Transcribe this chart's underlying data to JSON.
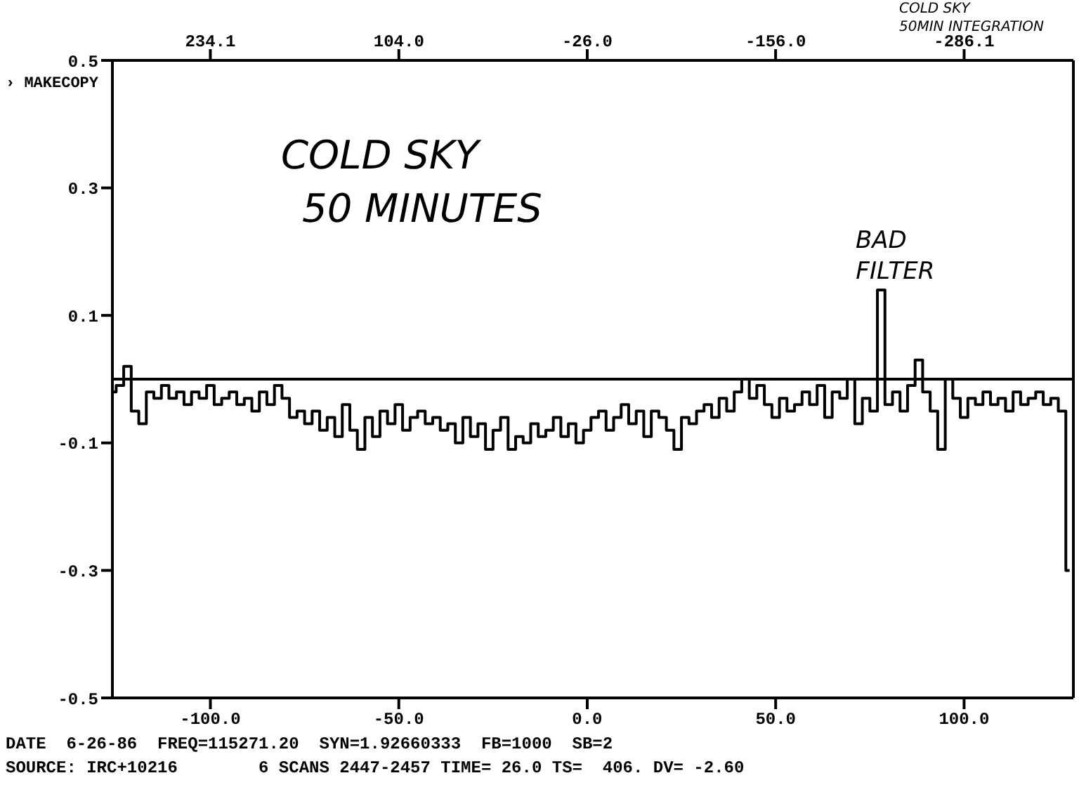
{
  "chart_data": {
    "type": "step",
    "x": [
      -126,
      -124,
      -122,
      -120,
      -118,
      -116,
      -114,
      -112,
      -110,
      -108,
      -106,
      -104,
      -102,
      -100,
      -98,
      -96,
      -94,
      -92,
      -90,
      -88,
      -86,
      -84,
      -82,
      -80,
      -78,
      -76,
      -74,
      -72,
      -70,
      -68,
      -66,
      -64,
      -62,
      -60,
      -58,
      -56,
      -54,
      -52,
      -50,
      -48,
      -46,
      -44,
      -42,
      -40,
      -38,
      -36,
      -34,
      -32,
      -30,
      -28,
      -26,
      -24,
      -22,
      -20,
      -18,
      -16,
      -14,
      -12,
      -10,
      -8,
      -6,
      -4,
      -2,
      0,
      2,
      4,
      6,
      8,
      10,
      12,
      14,
      16,
      18,
      20,
      22,
      24,
      26,
      28,
      30,
      32,
      34,
      36,
      38,
      40,
      42,
      44,
      46,
      48,
      50,
      52,
      54,
      56,
      58,
      60,
      62,
      64,
      66,
      68,
      70,
      72,
      74,
      76,
      78,
      80,
      82,
      84,
      86,
      88,
      90,
      92,
      94,
      96,
      98,
      100,
      102,
      104,
      106,
      108,
      110,
      112,
      114,
      116,
      118,
      120,
      122,
      124,
      126,
      128
    ],
    "series": [
      {
        "color": "#000000",
        "values": [
          -0.02,
          -0.01,
          0.02,
          -0.05,
          -0.07,
          -0.02,
          -0.03,
          -0.01,
          -0.03,
          -0.02,
          -0.04,
          -0.02,
          -0.03,
          -0.01,
          -0.04,
          -0.03,
          -0.02,
          -0.04,
          -0.03,
          -0.05,
          -0.02,
          -0.04,
          -0.01,
          -0.03,
          -0.06,
          -0.05,
          -0.07,
          -0.05,
          -0.08,
          -0.06,
          -0.09,
          -0.04,
          -0.08,
          -0.11,
          -0.06,
          -0.09,
          -0.05,
          -0.07,
          -0.04,
          -0.08,
          -0.06,
          -0.05,
          -0.07,
          -0.06,
          -0.08,
          -0.07,
          -0.1,
          -0.06,
          -0.09,
          -0.07,
          -0.11,
          -0.08,
          -0.06,
          -0.11,
          -0.09,
          -0.1,
          -0.07,
          -0.09,
          -0.08,
          -0.06,
          -0.09,
          -0.07,
          -0.1,
          -0.08,
          -0.06,
          -0.05,
          -0.08,
          -0.06,
          -0.04,
          -0.07,
          -0.05,
          -0.09,
          -0.05,
          -0.06,
          -0.08,
          -0.11,
          -0.06,
          -0.07,
          -0.05,
          -0.04,
          -0.06,
          -0.03,
          -0.05,
          -0.02,
          0.0,
          -0.03,
          -0.01,
          -0.04,
          -0.06,
          -0.03,
          -0.05,
          -0.04,
          -0.02,
          -0.04,
          -0.01,
          -0.06,
          -0.02,
          -0.03,
          0.0,
          -0.07,
          -0.03,
          -0.05,
          0.14,
          -0.04,
          -0.02,
          -0.05,
          -0.01,
          0.03,
          -0.02,
          -0.05,
          -0.11,
          0.0,
          -0.03,
          -0.06,
          -0.03,
          -0.04,
          -0.02,
          -0.04,
          -0.03,
          -0.05,
          -0.02,
          -0.04,
          -0.03,
          -0.02,
          -0.04,
          -0.03,
          -0.05,
          -0.3
        ]
      }
    ],
    "xlim": [
      -126,
      129
    ],
    "xticks": [
      {
        "value": -100,
        "label": "-100.0"
      },
      {
        "value": -50,
        "label": "-50.0"
      },
      {
        "value": 0,
        "label": "0.0"
      },
      {
        "value": 50,
        "label": "50.0"
      },
      {
        "value": 100,
        "label": "100.0"
      }
    ],
    "x2lim": [
      301.7,
      -361.5
    ],
    "x2ticks": [
      {
        "value": 234.1,
        "label": "234.1"
      },
      {
        "value": 104,
        "label": "104.0"
      },
      {
        "value": -26,
        "label": "-26.0"
      },
      {
        "value": -156,
        "label": "-156.0"
      },
      {
        "value": -286.1,
        "label": "-286.1"
      }
    ],
    "ylim": [
      -0.5,
      0.5
    ],
    "yticks": [
      0.5,
      0.3,
      0.1,
      -0.1,
      -0.3,
      -0.5
    ],
    "ref_lines": [
      {
        "axis": "y",
        "value": 0,
        "color": "#000000"
      }
    ],
    "grid": false,
    "legend": false,
    "annotations": [
      "› MAKECOPY",
      "COLD SKY",
      "50 MINUTES",
      "COLD SKY",
      "50MIN INTEGRATION",
      {
        "text": "BAD FILTER",
        "x": 78,
        "y": 0.14
      },
      "DATE  6-26-86  FREQ=115271.20  SYN=1.92660333  FB=1000  SB=2",
      "SOURCE: IRC+10216        6 SCANS 2447-2457 TIME= 26.0 TS=  406. DV= -2.60"
    ]
  }
}
